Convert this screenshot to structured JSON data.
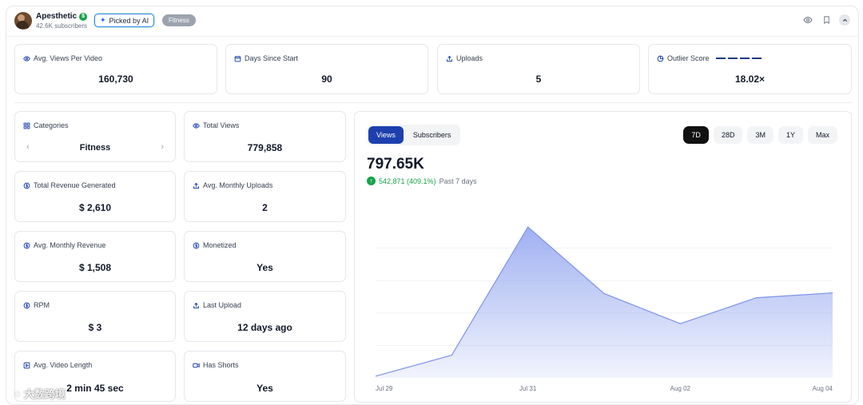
{
  "header": {
    "channel_name": "Apesthetic",
    "money_badge": "$",
    "subscribers": "42.6K subscribers",
    "pill_ai": "Picked by AI",
    "pill_category": "Fitness",
    "icons": [
      "eye-icon",
      "bookmark-icon",
      "chevron-up-icon"
    ]
  },
  "top_stats": [
    {
      "label": "Avg. Views Per Video",
      "value": "160,730",
      "icon": "eye-icon"
    },
    {
      "label": "Days Since Start",
      "value": "90",
      "icon": "calendar-icon"
    },
    {
      "label": "Uploads",
      "value": "5",
      "icon": "upload-icon"
    },
    {
      "label": "Outlier Score",
      "value": "18.02×",
      "icon": "pie-icon"
    }
  ],
  "left_stats": {
    "categories": {
      "label": "Categories",
      "value": "Fitness"
    },
    "total_views": {
      "label": "Total Views",
      "value": "779,858"
    },
    "total_revenue": {
      "label": "Total Revenue Generated",
      "value": "$ 2,610"
    },
    "avg_monthly_uploads": {
      "label": "Avg. Monthly Uploads",
      "value": "2"
    },
    "avg_monthly_revenue": {
      "label": "Avg. Monthly Revenue",
      "value": "$ 1,508"
    },
    "monetized": {
      "label": "Monetized",
      "value": "Yes"
    },
    "rpm": {
      "label": "RPM",
      "value": "$ 3"
    },
    "last_upload": {
      "label": "Last Upload",
      "value": "12 days ago"
    },
    "avg_video_length": {
      "label": "Avg. Video Length",
      "value": "2 min 45 sec"
    },
    "has_shorts": {
      "label": "Has Shorts",
      "value": "Yes"
    }
  },
  "chart_panel": {
    "tabs": [
      "Views",
      "Subscribers"
    ],
    "active_tab": "Views",
    "ranges": [
      "7D",
      "28D",
      "3M",
      "1Y",
      "Max"
    ],
    "active_range": "7D",
    "total": "797.65K",
    "growth_value": "542,871 (409.1%)",
    "growth_period": "Past 7 days"
  },
  "chart_data": {
    "type": "area",
    "x": [
      "Jul 29",
      "Jul 30",
      "Jul 31",
      "Aug 01",
      "Aug 02",
      "Aug 03",
      "Aug 04"
    ],
    "xtick_labels": [
      "Jul 29",
      "Jul 31",
      "Aug 02",
      "Aug 04"
    ],
    "series": [
      {
        "values": [
          5000,
          70000,
          465000,
          260000,
          167000,
          247000,
          262000
        ]
      }
    ],
    "ylim": [
      0,
      500000
    ],
    "grid": true,
    "color": "#8fa3ef"
  },
  "watermark": "大数跨境"
}
